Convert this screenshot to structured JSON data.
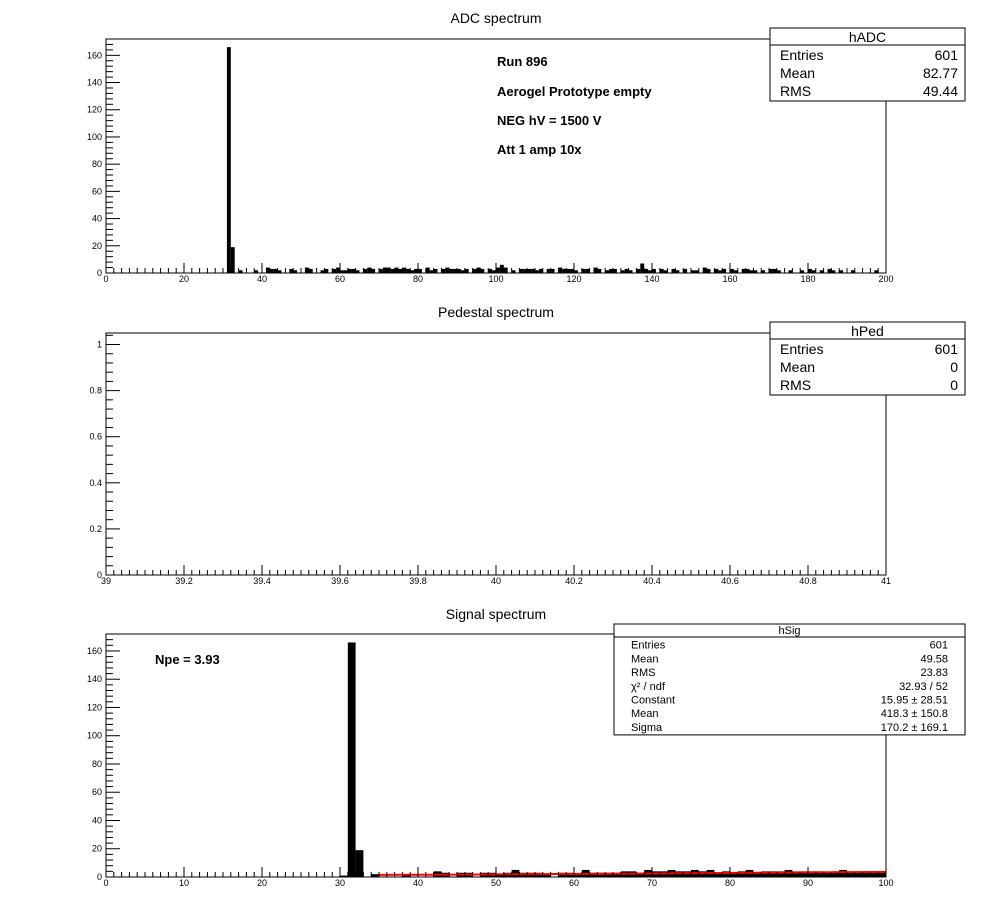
{
  "chart_data": [
    {
      "type": "bar",
      "title": "ADC spectrum",
      "xlim": [
        0,
        200
      ],
      "ylim": [
        0,
        172
      ],
      "xticks": [
        0,
        20,
        40,
        60,
        80,
        100,
        120,
        140,
        160,
        180,
        200
      ],
      "yticks": [
        0,
        20,
        40,
        60,
        80,
        100,
        120,
        140,
        160
      ],
      "bin_width": 1,
      "bins": [
        [
          31,
          166
        ],
        [
          32,
          19
        ],
        [
          34,
          2
        ],
        [
          38,
          2
        ],
        [
          41,
          4
        ],
        [
          42,
          3
        ],
        [
          43,
          3
        ],
        [
          44,
          2
        ],
        [
          47,
          3
        ],
        [
          48,
          2
        ],
        [
          51,
          4
        ],
        [
          52,
          3
        ],
        [
          55,
          2
        ],
        [
          56,
          3
        ],
        [
          58,
          3
        ],
        [
          59,
          4
        ],
        [
          60,
          2
        ],
        [
          61,
          2
        ],
        [
          62,
          3
        ],
        [
          63,
          3
        ],
        [
          64,
          2
        ],
        [
          66,
          3
        ],
        [
          67,
          4
        ],
        [
          68,
          3
        ],
        [
          70,
          3
        ],
        [
          71,
          4
        ],
        [
          72,
          4
        ],
        [
          73,
          3
        ],
        [
          74,
          4
        ],
        [
          75,
          3
        ],
        [
          76,
          4
        ],
        [
          77,
          3
        ],
        [
          78,
          2
        ],
        [
          79,
          3
        ],
        [
          80,
          3
        ],
        [
          82,
          4
        ],
        [
          83,
          2
        ],
        [
          84,
          3
        ],
        [
          86,
          3
        ],
        [
          87,
          4
        ],
        [
          88,
          3
        ],
        [
          89,
          3
        ],
        [
          90,
          3
        ],
        [
          91,
          2
        ],
        [
          92,
          3
        ],
        [
          94,
          3
        ],
        [
          95,
          4
        ],
        [
          96,
          3
        ],
        [
          98,
          3
        ],
        [
          99,
          2
        ],
        [
          100,
          4
        ],
        [
          101,
          6
        ],
        [
          102,
          4
        ],
        [
          104,
          2
        ],
        [
          106,
          3
        ],
        [
          107,
          3
        ],
        [
          108,
          3
        ],
        [
          109,
          3
        ],
        [
          110,
          2
        ],
        [
          111,
          3
        ],
        [
          113,
          3
        ],
        [
          114,
          3
        ],
        [
          116,
          4
        ],
        [
          117,
          3
        ],
        [
          118,
          3
        ],
        [
          119,
          3
        ],
        [
          120,
          2
        ],
        [
          122,
          3
        ],
        [
          123,
          3
        ],
        [
          125,
          4
        ],
        [
          126,
          3
        ],
        [
          128,
          2
        ],
        [
          129,
          3
        ],
        [
          130,
          3
        ],
        [
          132,
          2
        ],
        [
          133,
          3
        ],
        [
          134,
          2
        ],
        [
          136,
          3
        ],
        [
          137,
          7
        ],
        [
          138,
          3
        ],
        [
          139,
          2
        ],
        [
          140,
          3
        ],
        [
          142,
          3
        ],
        [
          143,
          2
        ],
        [
          145,
          3
        ],
        [
          146,
          2
        ],
        [
          148,
          3
        ],
        [
          150,
          2
        ],
        [
          151,
          2
        ],
        [
          153,
          4
        ],
        [
          154,
          3
        ],
        [
          156,
          3
        ],
        [
          157,
          2
        ],
        [
          158,
          3
        ],
        [
          160,
          3
        ],
        [
          161,
          2
        ],
        [
          163,
          3
        ],
        [
          164,
          3
        ],
        [
          165,
          2
        ],
        [
          166,
          2
        ],
        [
          168,
          2
        ],
        [
          170,
          3
        ],
        [
          171,
          3
        ],
        [
          172,
          2
        ],
        [
          175,
          2
        ],
        [
          178,
          2
        ],
        [
          180,
          3
        ],
        [
          181,
          2
        ],
        [
          183,
          2
        ],
        [
          185,
          3
        ],
        [
          186,
          2
        ],
        [
          188,
          2
        ],
        [
          191,
          2
        ],
        [
          197,
          2
        ]
      ],
      "annotations": [
        "Run  896",
        "Aerogel Prototype empty",
        "NEG hV = 1500 V",
        "Att 1 amp 10x"
      ],
      "stats": {
        "name": "hADC",
        "rows": [
          {
            "label": "Entries",
            "value": "601"
          },
          {
            "label": "Mean",
            "value": "82.77"
          },
          {
            "label": "RMS",
            "value": "49.44"
          }
        ]
      }
    },
    {
      "type": "bar",
      "title": "Pedestal spectrum",
      "xlim": [
        39,
        41
      ],
      "ylim": [
        0,
        1.05
      ],
      "xticks": [
        39,
        39.2,
        39.4,
        39.6,
        39.8,
        40,
        40.2,
        40.4,
        40.6,
        40.8,
        41
      ],
      "yticks": [
        0,
        0.2,
        0.4,
        0.6,
        0.8,
        1
      ],
      "bins": [],
      "stats": {
        "name": "hPed",
        "rows": [
          {
            "label": "Entries",
            "value": "601"
          },
          {
            "label": "Mean",
            "value": "0"
          },
          {
            "label": "RMS",
            "value": "0"
          }
        ]
      }
    },
    {
      "type": "bar",
      "title": "Signal spectrum",
      "xlim": [
        0,
        100
      ],
      "ylim": [
        0,
        172
      ],
      "xticks": [
        0,
        10,
        20,
        30,
        40,
        50,
        60,
        70,
        80,
        90,
        100
      ],
      "yticks": [
        0,
        20,
        40,
        60,
        80,
        100,
        120,
        140,
        160
      ],
      "bin_width": 1,
      "bins": [
        [
          30,
          1
        ],
        [
          31,
          166
        ],
        [
          32,
          19
        ],
        [
          34,
          2
        ],
        [
          38,
          2
        ],
        [
          42,
          4
        ],
        [
          43,
          3
        ],
        [
          45,
          3
        ],
        [
          46,
          3
        ],
        [
          48,
          3
        ],
        [
          49,
          3
        ],
        [
          50,
          2
        ],
        [
          51,
          3
        ],
        [
          52,
          5
        ],
        [
          53,
          3
        ],
        [
          54,
          3
        ],
        [
          55,
          3
        ],
        [
          56,
          2
        ],
        [
          58,
          3
        ],
        [
          59,
          3
        ],
        [
          60,
          2
        ],
        [
          61,
          5
        ],
        [
          62,
          3
        ],
        [
          63,
          3
        ],
        [
          64,
          3
        ],
        [
          65,
          3
        ],
        [
          66,
          4
        ],
        [
          67,
          4
        ],
        [
          68,
          3
        ],
        [
          69,
          5
        ],
        [
          70,
          4
        ],
        [
          71,
          4
        ],
        [
          72,
          5
        ],
        [
          73,
          4
        ],
        [
          74,
          4
        ],
        [
          75,
          5
        ],
        [
          76,
          4
        ],
        [
          77,
          5
        ],
        [
          78,
          3
        ],
        [
          79,
          4
        ],
        [
          80,
          3
        ],
        [
          81,
          4
        ],
        [
          82,
          5
        ],
        [
          83,
          3
        ],
        [
          84,
          4
        ],
        [
          85,
          4
        ],
        [
          86,
          4
        ],
        [
          87,
          5
        ],
        [
          88,
          4
        ],
        [
          89,
          4
        ],
        [
          90,
          4
        ],
        [
          91,
          4
        ],
        [
          92,
          3
        ],
        [
          93,
          4
        ],
        [
          94,
          5
        ],
        [
          95,
          4
        ],
        [
          96,
          4
        ],
        [
          97,
          4
        ],
        [
          98,
          4
        ],
        [
          99,
          4
        ]
      ],
      "fit": {
        "color": "#ff0000",
        "from": 35,
        "to": 100,
        "y_start": 1.5,
        "y_end": 3.6
      },
      "annotations": [
        "Npe = 3.93"
      ],
      "stats": {
        "name": "hSig",
        "rows": [
          {
            "label": "Entries",
            "value": "601"
          },
          {
            "label": "Mean",
            "value": "49.58"
          },
          {
            "label": "RMS",
            "value": "23.83"
          },
          {
            "label": "χ² / ndf",
            "value": "32.93 / 52"
          },
          {
            "label": "Constant",
            "value": "15.95 ± 28.51"
          },
          {
            "label": "Mean",
            "value": "418.3 ± 150.8"
          },
          {
            "label": "Sigma",
            "value": "170.2 ± 169.1"
          }
        ]
      }
    }
  ]
}
